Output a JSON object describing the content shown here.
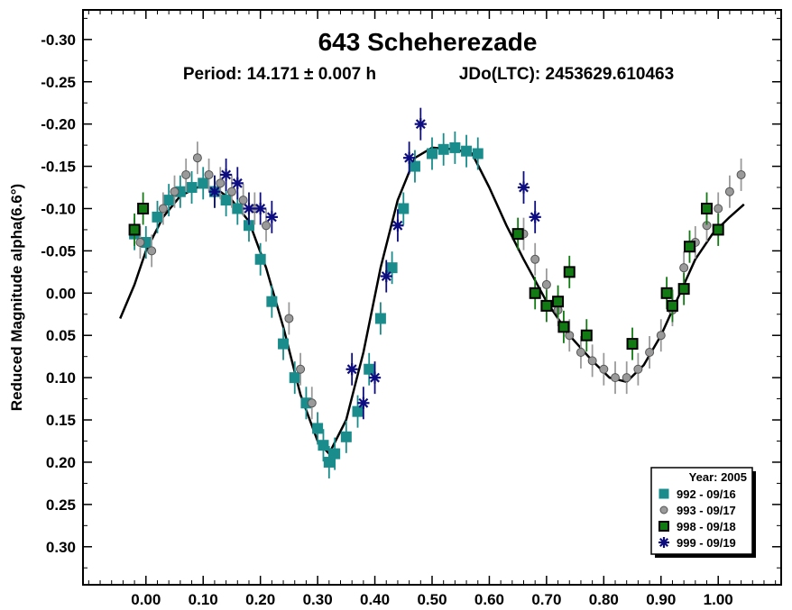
{
  "chart_data": {
    "type": "scatter",
    "title": "643 Scheherezade",
    "period_text": "Period: 14.171 ± 0.007 h",
    "epoch_text": "JDo(LTC): 2453629.610463",
    "xlabel": "",
    "ylabel": "Reduced Magnitude alpha(6.6°)",
    "xlim": [
      -0.11,
      1.11
    ],
    "ylim": [
      -0.335,
      0.345
    ],
    "y_inverted": true,
    "grid": false,
    "legend_position": "bottom-right",
    "x_ticks": [
      "0.00",
      "0.10",
      "0.20",
      "0.30",
      "0.40",
      "0.50",
      "0.60",
      "0.70",
      "0.80",
      "0.90",
      "1.00"
    ],
    "x_tick_values": [
      0,
      0.1,
      0.2,
      0.3,
      0.4,
      0.5,
      0.6,
      0.7,
      0.8,
      0.9,
      1.0
    ],
    "y_ticks": [
      "-0.30",
      "-0.25",
      "-0.20",
      "-0.15",
      "-0.10",
      "-0.05",
      "0.00",
      "0.05",
      "0.10",
      "0.15",
      "0.20",
      "0.25",
      "0.30"
    ],
    "y_tick_values": [
      -0.3,
      -0.25,
      -0.2,
      -0.15,
      -0.1,
      -0.05,
      0.0,
      0.05,
      0.1,
      0.15,
      0.2,
      0.25,
      0.3
    ],
    "legend_title": "Year: 2005",
    "colors": {
      "s992": "#1a8c8c",
      "s993": "#9a9a9a",
      "s998": "#127a12",
      "s999": "#0d0d80",
      "fit": "#000000"
    },
    "fit_curve": {
      "name": "",
      "x": [
        -0.045,
        -0.02,
        0.0,
        0.03,
        0.06,
        0.09,
        0.12,
        0.15,
        0.18,
        0.21,
        0.24,
        0.27,
        0.3,
        0.32,
        0.35,
        0.38,
        0.41,
        0.44,
        0.47,
        0.5,
        0.54,
        0.57,
        0.6,
        0.63,
        0.66,
        0.7,
        0.74,
        0.78,
        0.81,
        0.84,
        0.87,
        0.9,
        0.93,
        0.96,
        0.99,
        1.02,
        1.045
      ],
      "y": [
        0.03,
        -0.01,
        -0.05,
        -0.09,
        -0.115,
        -0.125,
        -0.125,
        -0.11,
        -0.085,
        -0.03,
        0.04,
        0.12,
        0.175,
        0.19,
        0.15,
        0.07,
        -0.03,
        -0.11,
        -0.16,
        -0.172,
        -0.17,
        -0.165,
        -0.125,
        -0.08,
        -0.04,
        0.01,
        0.05,
        0.08,
        0.1,
        0.105,
        0.085,
        0.05,
        0.005,
        -0.04,
        -0.07,
        -0.09,
        -0.105
      ]
    },
    "series": [
      {
        "name": "992 - 09/16",
        "marker": "square",
        "x": [
          -0.02,
          0.0,
          0.02,
          0.04,
          0.06,
          0.08,
          0.1,
          0.12,
          0.14,
          0.16,
          0.18,
          0.2,
          0.22,
          0.24,
          0.26,
          0.28,
          0.3,
          0.31,
          0.32,
          0.33,
          0.35,
          0.37,
          0.39,
          0.41,
          0.43,
          0.45,
          0.47,
          0.5,
          0.52,
          0.54,
          0.56,
          0.58
        ],
        "y": [
          -0.07,
          -0.06,
          -0.09,
          -0.11,
          -0.12,
          -0.125,
          -0.13,
          -0.12,
          -0.11,
          -0.1,
          -0.08,
          -0.04,
          0.01,
          0.06,
          0.1,
          0.13,
          0.16,
          0.18,
          0.2,
          0.19,
          0.17,
          0.14,
          0.09,
          0.03,
          -0.03,
          -0.1,
          -0.15,
          -0.165,
          -0.17,
          -0.172,
          -0.168,
          -0.165
        ]
      },
      {
        "name": "993 - 09/17",
        "marker": "circle",
        "x": [
          -0.01,
          0.01,
          0.03,
          0.05,
          0.07,
          0.09,
          0.11,
          0.13,
          0.15,
          0.17,
          0.19,
          0.21,
          0.25,
          0.27,
          0.29,
          0.66,
          0.68,
          0.7,
          0.72,
          0.74,
          0.76,
          0.78,
          0.8,
          0.82,
          0.84,
          0.86,
          0.88,
          0.9,
          0.92,
          0.94,
          0.96,
          0.98,
          1.0,
          1.02,
          1.04
        ],
        "y": [
          -0.06,
          -0.05,
          -0.1,
          -0.12,
          -0.14,
          -0.16,
          -0.14,
          -0.13,
          -0.12,
          -0.11,
          -0.1,
          -0.08,
          0.03,
          0.09,
          0.13,
          -0.07,
          -0.04,
          -0.01,
          0.02,
          0.05,
          0.07,
          0.08,
          0.09,
          0.1,
          0.1,
          0.09,
          0.07,
          0.05,
          0.02,
          -0.03,
          -0.06,
          -0.08,
          -0.1,
          -0.12,
          -0.14
        ]
      },
      {
        "name": "998 - 09/18",
        "marker": "square",
        "x": [
          -0.02,
          -0.005,
          0.65,
          0.68,
          0.7,
          0.72,
          0.73,
          0.74,
          0.77,
          0.85,
          0.91,
          0.92,
          0.94,
          0.95,
          0.98,
          1.0
        ],
        "y": [
          -0.075,
          -0.1,
          -0.07,
          0.0,
          0.015,
          0.01,
          0.04,
          -0.025,
          0.05,
          0.06,
          0.0,
          0.015,
          -0.005,
          -0.055,
          -0.1,
          -0.075
        ]
      },
      {
        "name": "999 - 09/19",
        "marker": "asterisk",
        "x": [
          0.12,
          0.14,
          0.16,
          0.18,
          0.2,
          0.22,
          0.36,
          0.38,
          0.4,
          0.42,
          0.44,
          0.46,
          0.48,
          0.66,
          0.68
        ],
        "y": [
          -0.12,
          -0.14,
          -0.13,
          -0.1,
          -0.1,
          -0.09,
          0.09,
          0.13,
          0.1,
          -0.02,
          -0.08,
          -0.16,
          -0.2,
          -0.125,
          -0.09
        ]
      }
    ]
  }
}
